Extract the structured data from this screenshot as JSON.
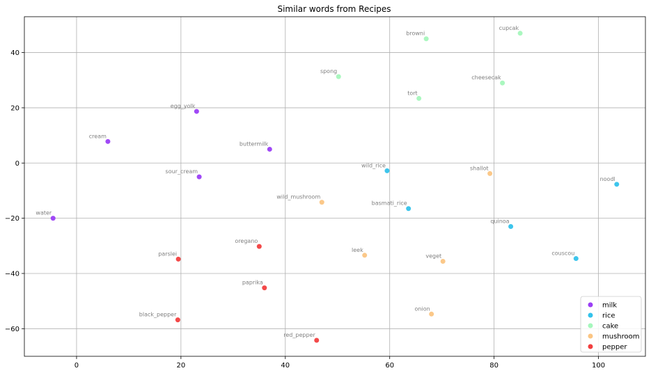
{
  "chart_data": {
    "type": "scatter",
    "title": "Similar words from Recipes",
    "xlabel": "",
    "ylabel": "",
    "xlim": [
      -10,
      109
    ],
    "ylim": [
      -70,
      53
    ],
    "xticks": [
      0,
      20,
      40,
      60,
      80,
      100
    ],
    "yticks": [
      40,
      20,
      0,
      -20,
      -40,
      -60
    ],
    "xtick_labels": [
      "0",
      "20",
      "40",
      "60",
      "80",
      "100"
    ],
    "ytick_labels": [
      "40",
      "20",
      "0",
      "−20",
      "−40",
      "−60"
    ],
    "grid": true,
    "legend_position": "bottom-right",
    "series": [
      {
        "name": "milk",
        "color": "#9b3ff5",
        "points": [
          {
            "label": "egg_yolk",
            "x": 23,
            "y": 18.7
          },
          {
            "label": "cream",
            "x": 6,
            "y": 7.8
          },
          {
            "label": "buttermilk",
            "x": 37,
            "y": 5
          },
          {
            "label": "sour_cream",
            "x": 23.5,
            "y": -5
          },
          {
            "label": "water",
            "x": -4.5,
            "y": -20
          }
        ]
      },
      {
        "name": "rice",
        "color": "#33c2eb",
        "points": [
          {
            "label": "wild_rice",
            "x": 59.5,
            "y": -2.8
          },
          {
            "label": "basmati_rice",
            "x": 63.6,
            "y": -16.5
          },
          {
            "label": "quinoa",
            "x": 83.2,
            "y": -23
          },
          {
            "label": "noodl",
            "x": 103.5,
            "y": -7.7
          },
          {
            "label": "couscou",
            "x": 95.7,
            "y": -34.6
          }
        ]
      },
      {
        "name": "cake",
        "color": "#a5f7bc",
        "points": [
          {
            "label": "browni",
            "x": 67,
            "y": 45
          },
          {
            "label": "cupcak",
            "x": 85,
            "y": 47
          },
          {
            "label": "spong",
            "x": 50.2,
            "y": 31.3
          },
          {
            "label": "cheesecak",
            "x": 81.6,
            "y": 29
          },
          {
            "label": "tort",
            "x": 65.6,
            "y": 23.4
          }
        ]
      },
      {
        "name": "mushroom",
        "color": "#fbc583",
        "points": [
          {
            "label": "shallot",
            "x": 79.2,
            "y": -3.8
          },
          {
            "label": "wild_mushroom",
            "x": 47,
            "y": -14.2
          },
          {
            "label": "leek",
            "x": 55.2,
            "y": -33.4
          },
          {
            "label": "veget",
            "x": 70.2,
            "y": -35.6
          },
          {
            "label": "onion",
            "x": 68,
            "y": -54.7
          }
        ]
      },
      {
        "name": "pepper",
        "color": "#f23f3f",
        "points": [
          {
            "label": "oregano",
            "x": 35,
            "y": -30.2
          },
          {
            "label": "parslei",
            "x": 19.5,
            "y": -34.8
          },
          {
            "label": "paprika",
            "x": 36,
            "y": -45.2
          },
          {
            "label": "black_pepper",
            "x": 19.4,
            "y": -56.8
          },
          {
            "label": "red_pepper",
            "x": 46,
            "y": -64.2
          }
        ]
      }
    ]
  }
}
